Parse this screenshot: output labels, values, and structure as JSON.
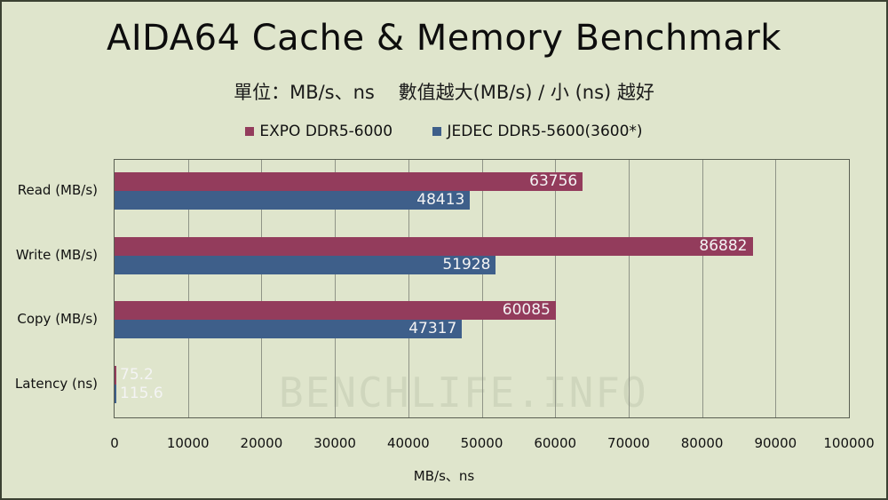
{
  "chart_data": {
    "type": "bar",
    "orientation": "horizontal",
    "title": "AIDA64 Cache & Memory Benchmark",
    "subtitle": "單位：MB/s、ns    數值越大(MB/s) / 小 (ns) 越好",
    "categories": [
      "Read (MB/s)",
      "Write (MB/s)",
      "Copy (MB/s)",
      "Latency (ns)"
    ],
    "series": [
      {
        "name": "EXPO DDR5-6000",
        "color": "#933c5c",
        "values": [
          63756,
          86882,
          60085,
          75.2
        ]
      },
      {
        "name": "JEDEC DDR5-5600(3600*)",
        "color": "#3e5f8a",
        "values": [
          48413,
          51928,
          47317,
          115.6
        ]
      }
    ],
    "xlabel": "MB/s、ns",
    "ylabel": "",
    "xlim": [
      0,
      100000
    ],
    "xticks": [
      "0",
      "10000",
      "20000",
      "30000",
      "40000",
      "50000",
      "60000",
      "70000",
      "80000",
      "90000",
      "100000"
    ],
    "grid": true,
    "legend_position": "top",
    "watermark": "BENCHLIFE.INFO"
  }
}
